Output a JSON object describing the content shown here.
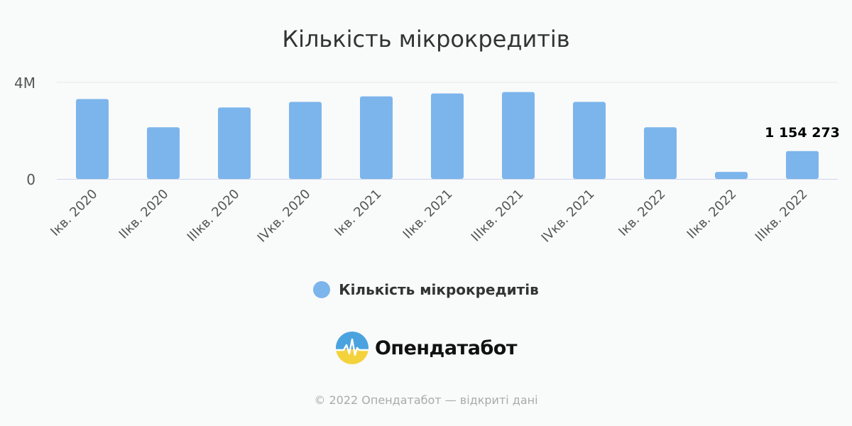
{
  "title": "Кількість мікрокредитів",
  "legend": {
    "label": "Кількість мікрокредитів",
    "color": "#7cb5ec"
  },
  "logo": {
    "text": "Опендатабот"
  },
  "footer": {
    "text": "© 2022 Опендатабот — відкриті дані"
  },
  "colors": {
    "bar": "#7cb5ec",
    "grid": "#e6e6e6",
    "axis": "#ccd6eb",
    "text": "#333333",
    "label_dark": "#000000"
  },
  "chart_data": {
    "type": "bar",
    "title": "Кількість мікрокредитів",
    "categories": [
      "Iкв. 2020",
      "IIкв. 2020",
      "IIIкв. 2020",
      "IVкв. 2020",
      "Iкв. 2021",
      "IIкв. 2021",
      "IIIкв. 2021",
      "IVкв. 2021",
      "Iкв. 2022",
      "IIкв. 2022",
      "IIIкв. 2022"
    ],
    "series": [
      {
        "name": "Кількість мікрокредитів",
        "values": [
          3310000,
          2140000,
          2960000,
          3190000,
          3420000,
          3540000,
          3600000,
          3190000,
          2140000,
          290000,
          1154273
        ]
      }
    ],
    "ylim": [
      0,
      4000000
    ],
    "yticks": [
      0,
      4000000
    ],
    "ytick_labels": [
      "0",
      "4M"
    ],
    "data_labels": [
      {
        "index": 10,
        "text": "1 154 273"
      }
    ],
    "grid": true,
    "legend_position": "bottom-center"
  }
}
